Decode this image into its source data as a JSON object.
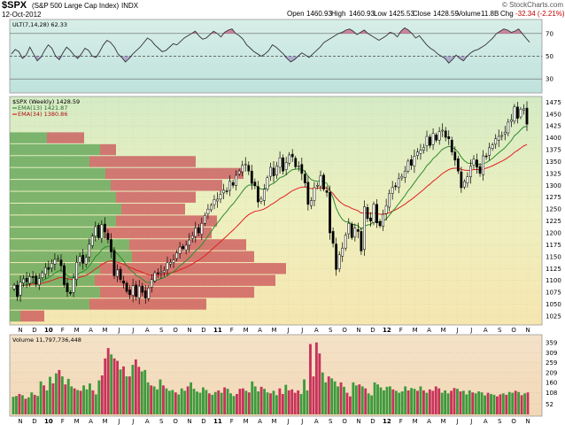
{
  "header": {
    "symbol": "$SPX",
    "name": "(S&P 500 Large Cap Index)",
    "exchange": "INDX",
    "date": "12-Oct-2012",
    "open_label": "Open",
    "open": "1460.93",
    "high_label": "High",
    "high": "1460.93",
    "low_label": "Low",
    "low": "1425.53",
    "close_label": "Close",
    "close": "1428.59",
    "volume_label": "Volume",
    "volume": "11.8B",
    "chg_label": "Chg",
    "chg": "-32.34 (-2.21%)",
    "copyright": "© StockCharts.com"
  },
  "colors": {
    "up_volume": "#3d9a3d",
    "down_volume": "#c8325a",
    "ema13": "#2e8b2e",
    "ema34": "#e02020",
    "ult_fill_high": "#c8648c",
    "ult_fill_low": "#8c64b4",
    "vbp_up": "#5aa050",
    "vbp_down": "#c84650"
  },
  "chart_data": [
    {
      "type": "line",
      "panel": "indicator",
      "legend": "ULT(7,14,28) 62.33",
      "ylim": [
        20,
        80
      ],
      "yticks": [
        30,
        50,
        70
      ],
      "reference_lines": [
        30,
        50,
        70
      ],
      "series": [
        {
          "name": "ULT(7,14,28)",
          "values": [
            52,
            56,
            54,
            48,
            51,
            58,
            52,
            46,
            49,
            55,
            60,
            57,
            50,
            47,
            53,
            58,
            55,
            51,
            48,
            52,
            57,
            55,
            50,
            49,
            54,
            60,
            64,
            62,
            58,
            52,
            49,
            45,
            48,
            52,
            55,
            58,
            62,
            66,
            64,
            60,
            57,
            54,
            55,
            58,
            61,
            60,
            63,
            66,
            68,
            70,
            72,
            68,
            65,
            66,
            69,
            72,
            70,
            67,
            71,
            73,
            74,
            70,
            68,
            65,
            60,
            57,
            54,
            52,
            50,
            52,
            55,
            60,
            58,
            55,
            52,
            48,
            45,
            47,
            50,
            53,
            51,
            49,
            52,
            55,
            58,
            62,
            64,
            66,
            68,
            70,
            71,
            73,
            74,
            72,
            69,
            71,
            73,
            70,
            68,
            66,
            64,
            66,
            68,
            71,
            70,
            67,
            72,
            75,
            73,
            70,
            66,
            68,
            64,
            60,
            57,
            55,
            52,
            50,
            48,
            44,
            47,
            51,
            48,
            46,
            50,
            53,
            55,
            56,
            58,
            60,
            63,
            66,
            70,
            72,
            74,
            73,
            71,
            72,
            74,
            70,
            66,
            62.33
          ]
        }
      ]
    },
    {
      "type": "candlestick",
      "panel": "price",
      "legend_title": "$SPX (Weekly) 1428.59",
      "legend": [
        "EMA(13) 1421.87",
        "EMA(34) 1380.86"
      ],
      "x_axis_ticks": [
        "N",
        "D",
        "10",
        "F",
        "M",
        "A",
        "M",
        "J",
        "J",
        "A",
        "S",
        "O",
        "N",
        "D",
        "11",
        "F",
        "M",
        "A",
        "M",
        "J",
        "J",
        "A",
        "S",
        "O",
        "N",
        "D",
        "12",
        "F",
        "M",
        "A",
        "M",
        "J",
        "J",
        "A",
        "S",
        "O",
        "N"
      ],
      "ylim": [
        1010,
        1485
      ],
      "yticks": [
        1025,
        1050,
        1075,
        1100,
        1125,
        1150,
        1175,
        1200,
        1225,
        1250,
        1275,
        1300,
        1325,
        1350,
        1375,
        1400,
        1425,
        1450,
        1475
      ],
      "close": [
        1090,
        1066,
        1096,
        1103,
        1097,
        1108,
        1106,
        1092,
        1104,
        1116,
        1127,
        1123,
        1136,
        1144,
        1146,
        1131,
        1091,
        1076,
        1073,
        1105,
        1138,
        1150,
        1136,
        1148,
        1176,
        1193,
        1213,
        1190,
        1217,
        1202,
        1186,
        1160,
        1110,
        1122,
        1102,
        1094,
        1077,
        1070,
        1089,
        1066,
        1088,
        1075,
        1063,
        1084,
        1102,
        1116,
        1115,
        1118,
        1121,
        1137,
        1138,
        1143,
        1158,
        1170,
        1167,
        1174,
        1185,
        1194,
        1210,
        1200,
        1220,
        1237,
        1250,
        1258,
        1270,
        1271,
        1281,
        1290,
        1288,
        1309,
        1300,
        1321,
        1330,
        1342,
        1345,
        1330,
        1304,
        1299,
        1265,
        1271,
        1292,
        1316,
        1338,
        1320,
        1341,
        1358,
        1330,
        1348,
        1364,
        1360,
        1339,
        1341,
        1325,
        1305,
        1260,
        1268,
        1295,
        1300,
        1320,
        1292,
        1285,
        1200,
        1178,
        1123,
        1154,
        1168,
        1195,
        1220,
        1190,
        1210,
        1203,
        1162,
        1255,
        1230,
        1225,
        1260,
        1221,
        1215,
        1239,
        1257,
        1283,
        1296,
        1297,
        1314,
        1319,
        1330,
        1351,
        1342,
        1361,
        1370,
        1374,
        1380,
        1403,
        1384,
        1409,
        1395,
        1413,
        1416,
        1401,
        1398,
        1370,
        1353,
        1330,
        1295,
        1308,
        1318,
        1340,
        1355,
        1338,
        1325,
        1362,
        1360,
        1379,
        1385,
        1398,
        1403,
        1405,
        1412,
        1433,
        1438,
        1465,
        1441,
        1460,
        1461,
        1428.59
      ],
      "ema13_last": 1421.87,
      "ema34_last": 1380.86,
      "volume_by_price": {
        "price_zones": [
          1025,
          1050,
          1075,
          1100,
          1125,
          1150,
          1175,
          1200,
          1225,
          1250,
          1275,
          1300,
          1325,
          1350,
          1375,
          1400
        ],
        "up_volume": [
          4,
          30,
          34,
          32,
          34,
          46,
          45,
          36,
          40,
          42,
          40,
          38,
          36,
          30,
          34,
          14
        ],
        "down_volume": [
          9,
          44,
          58,
          68,
          70,
          46,
          44,
          40,
          38,
          24,
          30,
          42,
          52,
          40,
          6,
          14
        ]
      }
    },
    {
      "type": "bar",
      "panel": "volume",
      "legend": "Volume 11,797,736,448",
      "ylim": [
        0,
        390
      ],
      "yticks": [
        52,
        108,
        160,
        209,
        259,
        309,
        359
      ],
      "tick_labels": [
        "52",
        "108",
        "160",
        "209",
        "259",
        "309",
        "359"
      ],
      "values": [
        88,
        92,
        102,
        96,
        78,
        85,
        110,
        98,
        92,
        165,
        145,
        120,
        188,
        155,
        205,
        222,
        190,
        150,
        178,
        140,
        130,
        122,
        118,
        145,
        125,
        155,
        120,
        100,
        170,
        195,
        280,
        332,
        300,
        280,
        268,
        225,
        240,
        190,
        190,
        248,
        275,
        238,
        215,
        222,
        160,
        145,
        140,
        125,
        175,
        145,
        130,
        118,
        122,
        110,
        100,
        130,
        118,
        140,
        160,
        128,
        114,
        108,
        135,
        122,
        105,
        98,
        112,
        120,
        108,
        135,
        128,
        105,
        92,
        102,
        128,
        130,
        118,
        110,
        165,
        140,
        115,
        138,
        128,
        110,
        105,
        118,
        96,
        130,
        102,
        148,
        120,
        125,
        108,
        120,
        102,
        175,
        120,
        352,
        190,
        360,
        305,
        210,
        160,
        190,
        180,
        165,
        140,
        160,
        138,
        108,
        90,
        160,
        145,
        150,
        140,
        130,
        105,
        95,
        160,
        150,
        135,
        120,
        138,
        140,
        125,
        118,
        108,
        115,
        140,
        120,
        132,
        128,
        118,
        140,
        120,
        108,
        125,
        118,
        140,
        130,
        108,
        120,
        105,
        118,
        132,
        128,
        115,
        118,
        100,
        120,
        110,
        105,
        115,
        110,
        95,
        108,
        102,
        98,
        90,
        100,
        105,
        98,
        112,
        108,
        118,
        112,
        96,
        105,
        110
      ],
      "up": [
        1,
        1,
        0,
        1,
        0,
        1,
        1,
        0,
        1,
        1,
        0,
        1,
        1,
        0,
        1,
        0,
        1,
        0,
        1,
        1,
        0,
        1,
        0,
        1,
        1,
        1,
        0,
        1,
        1,
        0,
        0,
        0,
        1,
        0,
        0,
        1,
        0,
        1,
        0,
        1,
        0,
        0,
        1,
        1,
        1,
        0,
        1,
        1,
        1,
        0,
        1,
        1,
        1,
        0,
        1,
        1,
        1,
        0,
        1,
        1,
        1,
        1,
        1,
        1,
        0,
        1,
        1,
        0,
        1,
        0,
        1,
        1,
        1,
        0,
        0,
        0,
        1,
        0,
        1,
        1,
        1,
        0,
        1,
        1,
        0,
        1,
        1,
        0,
        0,
        1,
        0,
        0,
        0,
        0,
        1,
        1,
        1,
        0,
        0,
        0,
        0,
        1,
        1,
        0,
        1,
        1,
        1,
        0,
        1,
        0,
        0,
        1,
        1,
        0,
        1,
        0,
        1,
        1,
        1,
        1,
        1,
        1,
        1,
        1,
        0,
        1,
        1,
        1,
        1,
        0,
        1,
        1,
        0,
        1,
        0,
        1,
        0,
        0,
        0,
        0,
        1,
        1,
        1,
        0,
        0,
        1,
        0,
        1,
        1,
        1,
        0,
        1,
        1,
        1,
        1,
        0,
        1,
        1,
        0,
        0,
        1,
        0,
        1,
        1,
        0,
        1,
        0,
        1,
        0
      ]
    }
  ]
}
